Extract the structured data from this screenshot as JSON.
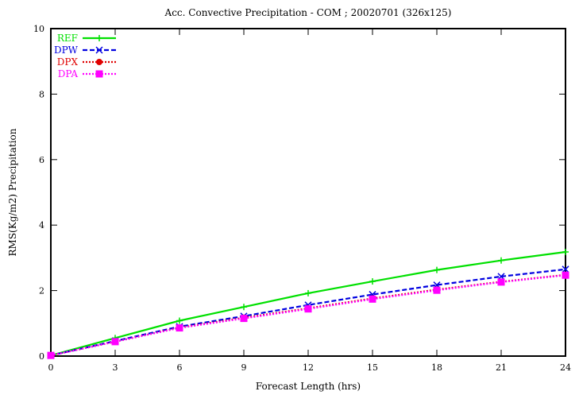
{
  "chart_data": {
    "type": "line",
    "title": "Acc. Convective Precipitation - COM ; 20020701 (326x125)",
    "xlabel": "Forecast Length (hrs)",
    "ylabel": "RMS(Kg/m2) Precipitation",
    "xlim": [
      0,
      24
    ],
    "ylim": [
      0,
      10
    ],
    "x": [
      0,
      3,
      6,
      9,
      12,
      15,
      18,
      21,
      24
    ],
    "xticks": [
      "0",
      "3",
      "6",
      "9",
      "12",
      "15",
      "18",
      "21",
      "24"
    ],
    "yticks": [
      "0",
      "2",
      "4",
      "6",
      "8",
      "10"
    ],
    "legend_position": "top-left",
    "grid": false,
    "series": [
      {
        "name": "REF",
        "color": "#00e000",
        "dash": "solid",
        "marker": "plus",
        "values": [
          0.02,
          0.55,
          1.08,
          1.5,
          1.92,
          2.28,
          2.63,
          2.92,
          3.18
        ]
      },
      {
        "name": "DPW",
        "color": "#0000e0",
        "dash": "dashed",
        "marker": "x",
        "values": [
          0.02,
          0.46,
          0.9,
          1.22,
          1.56,
          1.88,
          2.17,
          2.43,
          2.65
        ]
      },
      {
        "name": "DPX",
        "color": "#e00000",
        "dash": "dotted",
        "marker": "circle",
        "values": [
          0.02,
          0.44,
          0.87,
          1.17,
          1.46,
          1.76,
          2.03,
          2.27,
          2.48
        ]
      },
      {
        "name": "DPA",
        "color": "#ff00ff",
        "dash": "dotted",
        "marker": "square",
        "values": [
          0.02,
          0.44,
          0.86,
          1.15,
          1.44,
          1.74,
          2.01,
          2.26,
          2.47
        ]
      }
    ]
  }
}
